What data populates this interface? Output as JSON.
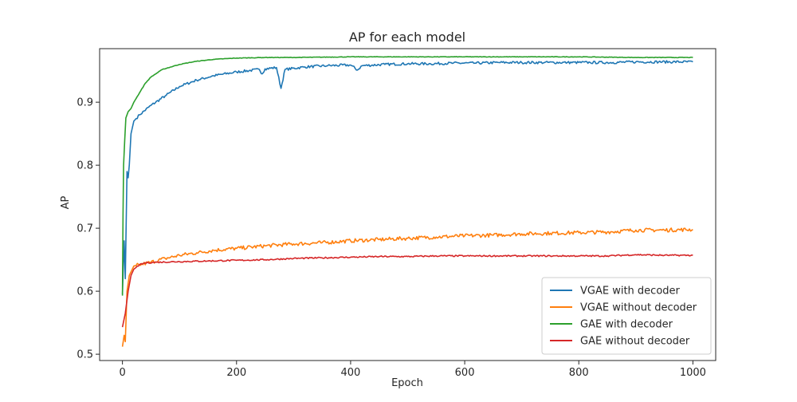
{
  "chart_data": {
    "type": "line",
    "title": "AP for each model",
    "xlabel": "Epoch",
    "ylabel": "AP",
    "xlim": [
      -40,
      1040
    ],
    "ylim": [
      0.49,
      0.985
    ],
    "xticks": [
      0,
      200,
      400,
      600,
      800,
      1000
    ],
    "yticks": [
      0.5,
      0.6,
      0.7,
      0.8,
      0.9
    ],
    "grid": false,
    "legend_position": "lower-right",
    "series": [
      {
        "name": "VGAE with decoder",
        "color": "#1f77b4",
        "points": [
          [
            0,
            0.595
          ],
          [
            3,
            0.68
          ],
          [
            5,
            0.62
          ],
          [
            8,
            0.79
          ],
          [
            10,
            0.78
          ],
          [
            12,
            0.8
          ],
          [
            15,
            0.85
          ],
          [
            20,
            0.87
          ],
          [
            30,
            0.88
          ],
          [
            50,
            0.895
          ],
          [
            75,
            0.91
          ],
          [
            100,
            0.925
          ],
          [
            130,
            0.935
          ],
          [
            160,
            0.942
          ],
          [
            200,
            0.948
          ],
          [
            240,
            0.952
          ],
          [
            245,
            0.945
          ],
          [
            250,
            0.953
          ],
          [
            270,
            0.955
          ],
          [
            278,
            0.922
          ],
          [
            285,
            0.952
          ],
          [
            320,
            0.956
          ],
          [
            360,
            0.958
          ],
          [
            400,
            0.959
          ],
          [
            412,
            0.951
          ],
          [
            420,
            0.958
          ],
          [
            460,
            0.96
          ],
          [
            500,
            0.961
          ],
          [
            540,
            0.961
          ],
          [
            580,
            0.962
          ],
          [
            620,
            0.962
          ],
          [
            660,
            0.963
          ],
          [
            700,
            0.963
          ],
          [
            740,
            0.963
          ],
          [
            780,
            0.963
          ],
          [
            820,
            0.963
          ],
          [
            860,
            0.963
          ],
          [
            900,
            0.964
          ],
          [
            940,
            0.964
          ],
          [
            1000,
            0.964
          ]
        ]
      },
      {
        "name": "VGAE without decoder",
        "color": "#ff7f0e",
        "points": [
          [
            0,
            0.512
          ],
          [
            3,
            0.53
          ],
          [
            5,
            0.52
          ],
          [
            8,
            0.6
          ],
          [
            12,
            0.625
          ],
          [
            20,
            0.64
          ],
          [
            30,
            0.642
          ],
          [
            50,
            0.646
          ],
          [
            75,
            0.652
          ],
          [
            100,
            0.657
          ],
          [
            130,
            0.661
          ],
          [
            160,
            0.665
          ],
          [
            200,
            0.668
          ],
          [
            250,
            0.672
          ],
          [
            300,
            0.675
          ],
          [
            350,
            0.677
          ],
          [
            400,
            0.68
          ],
          [
            450,
            0.682
          ],
          [
            500,
            0.684
          ],
          [
            550,
            0.686
          ],
          [
            600,
            0.688
          ],
          [
            650,
            0.689
          ],
          [
            700,
            0.691
          ],
          [
            750,
            0.692
          ],
          [
            800,
            0.693
          ],
          [
            850,
            0.694
          ],
          [
            900,
            0.697
          ],
          [
            950,
            0.697
          ],
          [
            1000,
            0.698
          ]
        ]
      },
      {
        "name": "GAE with decoder",
        "color": "#2ca02c",
        "points": [
          [
            0,
            0.593
          ],
          [
            1,
            0.72
          ],
          [
            2,
            0.8
          ],
          [
            4,
            0.84
          ],
          [
            6,
            0.875
          ],
          [
            10,
            0.885
          ],
          [
            15,
            0.89
          ],
          [
            20,
            0.9
          ],
          [
            30,
            0.915
          ],
          [
            40,
            0.93
          ],
          [
            50,
            0.94
          ],
          [
            70,
            0.952
          ],
          [
            100,
            0.96
          ],
          [
            130,
            0.965
          ],
          [
            160,
            0.968
          ],
          [
            200,
            0.97
          ],
          [
            250,
            0.971
          ],
          [
            300,
            0.971
          ],
          [
            400,
            0.972
          ],
          [
            500,
            0.972
          ],
          [
            600,
            0.972
          ],
          [
            700,
            0.972
          ],
          [
            800,
            0.972
          ],
          [
            900,
            0.971
          ],
          [
            1000,
            0.971
          ]
        ]
      },
      {
        "name": "GAE without decoder",
        "color": "#d62728",
        "points": [
          [
            0,
            0.543
          ],
          [
            5,
            0.565
          ],
          [
            10,
            0.6
          ],
          [
            15,
            0.625
          ],
          [
            20,
            0.635
          ],
          [
            30,
            0.642
          ],
          [
            40,
            0.645
          ],
          [
            60,
            0.646
          ],
          [
            100,
            0.647
          ],
          [
            150,
            0.648
          ],
          [
            200,
            0.649
          ],
          [
            250,
            0.65
          ],
          [
            300,
            0.652
          ],
          [
            350,
            0.653
          ],
          [
            400,
            0.654
          ],
          [
            450,
            0.655
          ],
          [
            500,
            0.655
          ],
          [
            550,
            0.656
          ],
          [
            600,
            0.656
          ],
          [
            650,
            0.656
          ],
          [
            700,
            0.656
          ],
          [
            750,
            0.656
          ],
          [
            800,
            0.656
          ],
          [
            850,
            0.656
          ],
          [
            900,
            0.658
          ],
          [
            950,
            0.657
          ],
          [
            1000,
            0.657
          ]
        ]
      }
    ]
  }
}
